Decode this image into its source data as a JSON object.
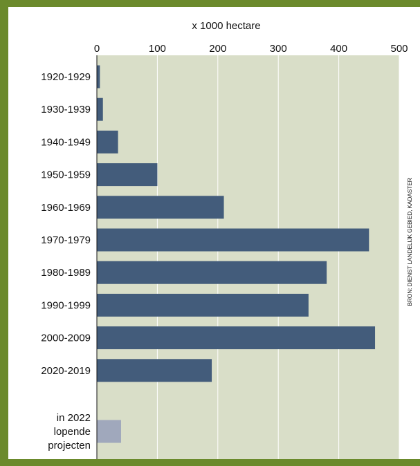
{
  "chart_data": {
    "type": "bar",
    "orientation": "horizontal",
    "xlabel": "x 1000 hectare",
    "xlim": [
      0,
      500
    ],
    "xticks": [
      0,
      100,
      200,
      300,
      400,
      500
    ],
    "grid": true,
    "categories": [
      "1920-1929",
      "1930-1939",
      "1940-1949",
      "1950-1959",
      "1960-1969",
      "1970-1979",
      "1980-1989",
      "1990-1999",
      "2000-2009",
      "2020-2019",
      "in 2022 lopende projecten"
    ],
    "category_lines": [
      [
        "1920-1929"
      ],
      [
        "1930-1939"
      ],
      [
        "1940-1949"
      ],
      [
        "1950-1959"
      ],
      [
        "1960-1969"
      ],
      [
        "1970-1979"
      ],
      [
        "1980-1989"
      ],
      [
        "1990-1999"
      ],
      [
        "2000-2009"
      ],
      [
        "2020-2019"
      ],
      [
        "in 2022",
        "lopende",
        "projecten"
      ]
    ],
    "values": [
      5,
      10,
      35,
      100,
      210,
      450,
      380,
      350,
      460,
      190,
      40
    ],
    "bar_colors": [
      "#435c7b",
      "#435c7b",
      "#435c7b",
      "#435c7b",
      "#435c7b",
      "#435c7b",
      "#435c7b",
      "#435c7b",
      "#435c7b",
      "#435c7b",
      "#a0a8bc"
    ],
    "source": "BRON: DIENST LANDELIJK GEBIED, KADASTER",
    "colors": {
      "frame": "#6b8a2c",
      "plot_background": "#d9dec8",
      "grid": "#ffffff",
      "bar": "#435c7b",
      "bar_projects": "#a0a8bc"
    }
  }
}
